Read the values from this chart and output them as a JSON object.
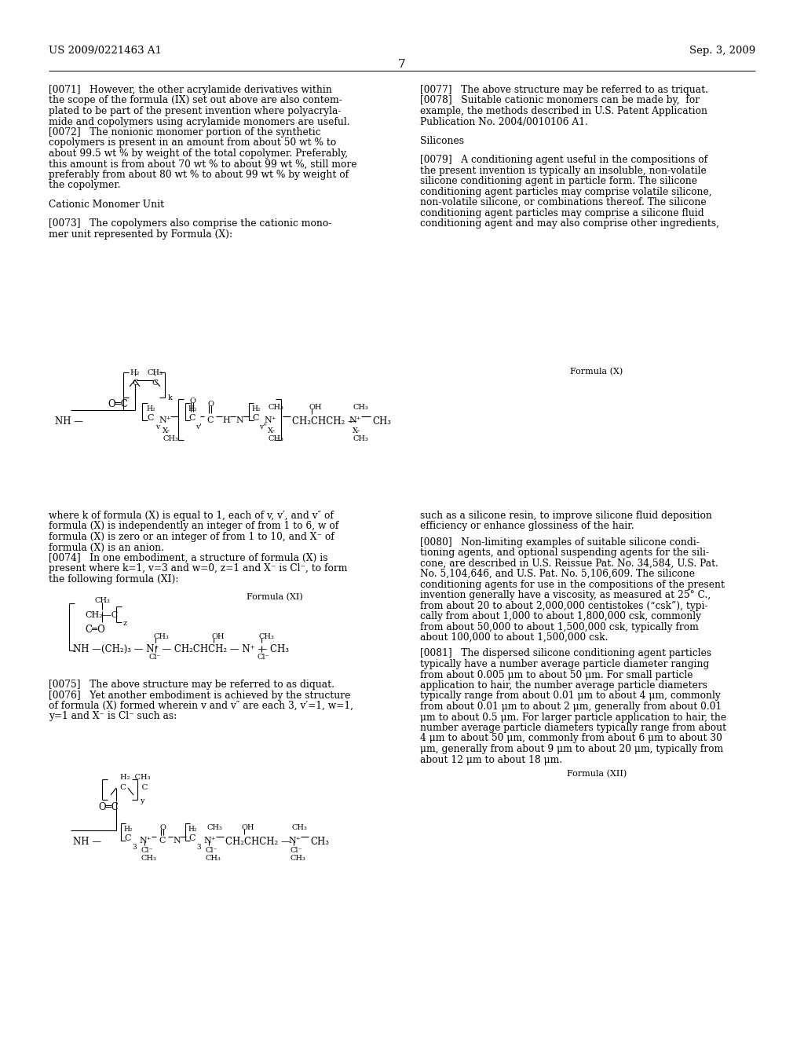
{
  "page_number": "7",
  "header_left": "US 2009/0221463 A1",
  "header_right": "Sep. 3, 2009",
  "background_color": "#ffffff"
}
